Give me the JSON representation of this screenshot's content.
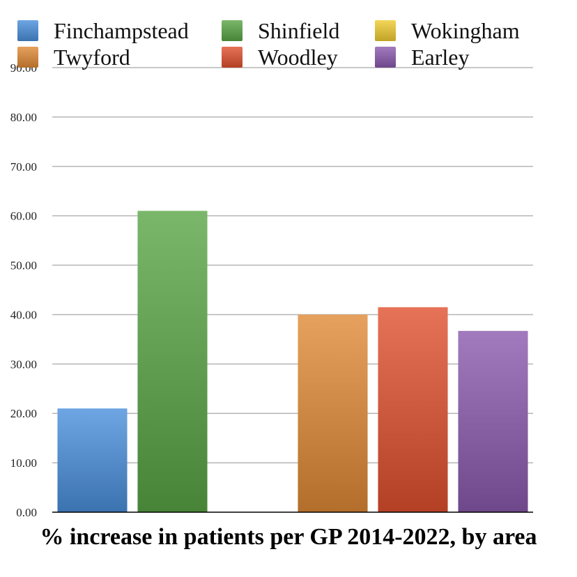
{
  "chart_data": {
    "type": "bar",
    "title": "% increase in patients per GP 2014-2022, by area",
    "xlabel": "",
    "ylabel": "",
    "ylim": [
      0,
      90
    ],
    "yticks": [
      "0.00",
      "10.00",
      "20.00",
      "30.00",
      "40.00",
      "50.00",
      "60.00",
      "70.00",
      "80.00",
      "90.00"
    ],
    "grid": true,
    "legend_position": "top",
    "series": [
      {
        "name": "Finchampstead",
        "value": 21.0,
        "color": "#4a8fdc"
      },
      {
        "name": "Shinfield",
        "value": 61.0,
        "color": "#5aa545"
      },
      {
        "name": "Wokingham",
        "value": null,
        "color": "#f0cc30"
      },
      {
        "name": "Twyford",
        "value": 40.0,
        "color": "#e08a36"
      },
      {
        "name": "Woodley",
        "value": 41.5,
        "color": "#e0502e"
      },
      {
        "name": "Earley",
        "value": 36.7,
        "color": "#8a5aad"
      }
    ]
  }
}
